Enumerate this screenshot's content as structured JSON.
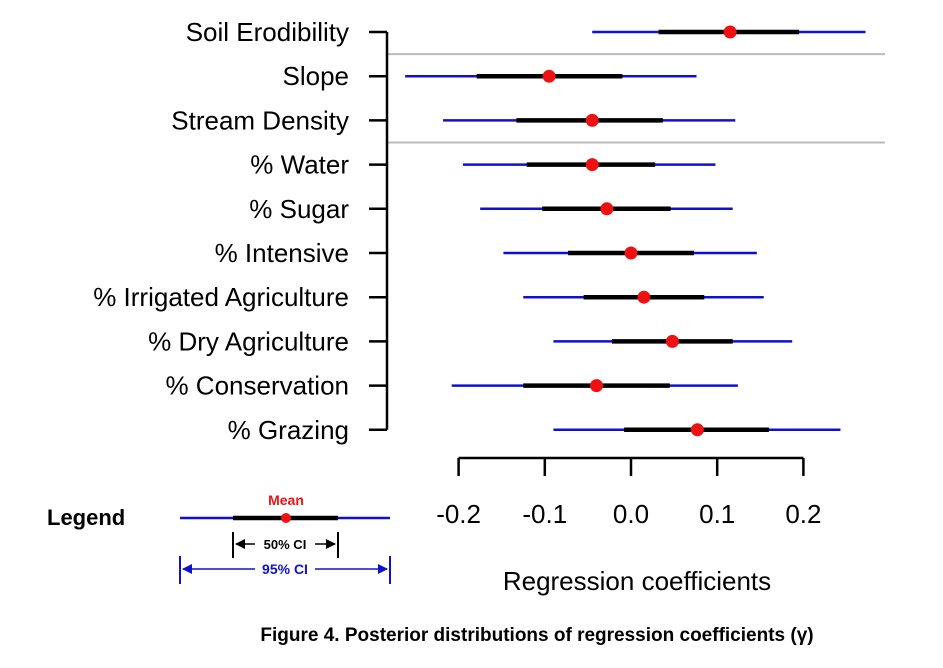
{
  "chart_data": {
    "type": "forest",
    "title": "",
    "caption": "Figure 4. Posterior distributions of regression coefficients (γ)",
    "xlabel": "Regression coefficients",
    "xlim": [
      -0.2,
      0.2
    ],
    "xticks": [
      -0.2,
      -0.1,
      0.0,
      0.1,
      0.2
    ],
    "xtick_labels": [
      "-0.2",
      "-0.1",
      "0.0",
      "0.1",
      "0.2"
    ],
    "groups_separated_after": [
      "Soil Erodibility",
      "Stream Density"
    ],
    "rows": [
      {
        "label": "Soil Erodibility",
        "mean": 0.115,
        "ci50": [
          0.032,
          0.195
        ],
        "ci95": [
          -0.045,
          0.272
        ]
      },
      {
        "label": "Slope",
        "mean": -0.095,
        "ci50": [
          -0.179,
          -0.01
        ],
        "ci95": [
          -0.262,
          0.076
        ]
      },
      {
        "label": "Stream Density",
        "mean": -0.045,
        "ci50": [
          -0.133,
          0.037
        ],
        "ci95": [
          -0.218,
          0.121
        ]
      },
      {
        "label": "% Water",
        "mean": -0.045,
        "ci50": [
          -0.121,
          0.028
        ],
        "ci95": [
          -0.195,
          0.098
        ]
      },
      {
        "label": "% Sugar",
        "mean": -0.028,
        "ci50": [
          -0.103,
          0.046
        ],
        "ci95": [
          -0.175,
          0.118
        ]
      },
      {
        "label": "% Intensive",
        "mean": 0.0,
        "ci50": [
          -0.073,
          0.073
        ],
        "ci95": [
          -0.148,
          0.146
        ]
      },
      {
        "label": "% Irrigated Agriculture",
        "mean": 0.015,
        "ci50": [
          -0.055,
          0.085
        ],
        "ci95": [
          -0.125,
          0.154
        ]
      },
      {
        "label": "% Dry Agriculture",
        "mean": 0.048,
        "ci50": [
          -0.022,
          0.118
        ],
        "ci95": [
          -0.09,
          0.187
        ]
      },
      {
        "label": "% Conservation",
        "mean": -0.04,
        "ci50": [
          -0.125,
          0.045
        ],
        "ci95": [
          -0.208,
          0.124
        ]
      },
      {
        "label": "% Grazing",
        "mean": 0.077,
        "ci50": [
          -0.008,
          0.16
        ],
        "ci95": [
          -0.09,
          0.243
        ]
      }
    ],
    "legend": {
      "title": "Legend",
      "mean_label": "Mean",
      "ci50_label": "50% CI",
      "ci95_label": "95% CI"
    },
    "colors": {
      "ci95": "#1010d0",
      "ci50": "#000000",
      "mean": "#ee1111",
      "separator": "#bbbbbb",
      "axis": "#000000"
    }
  }
}
